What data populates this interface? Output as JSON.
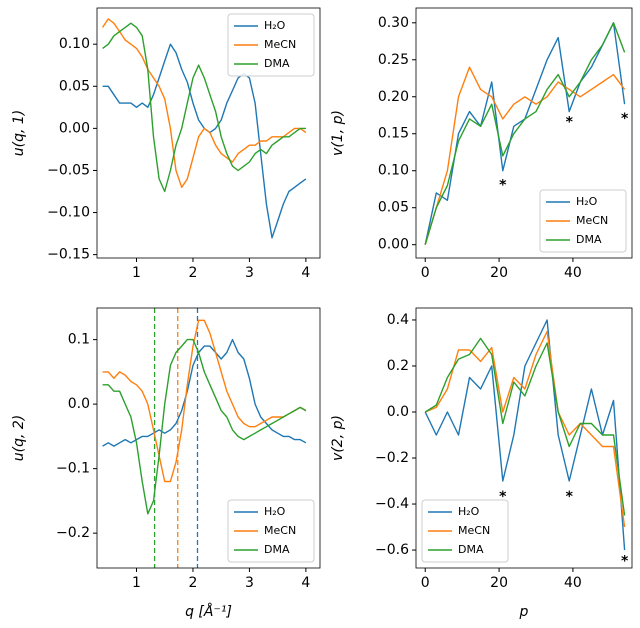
{
  "chart_data": [
    {
      "type": "line",
      "ylabel": "u(q, 1)",
      "x": [
        0.4,
        0.5,
        0.6,
        0.7,
        0.8,
        0.9,
        1.0,
        1.1,
        1.2,
        1.3,
        1.4,
        1.5,
        1.6,
        1.7,
        1.8,
        1.9,
        2.0,
        2.1,
        2.2,
        2.3,
        2.4,
        2.5,
        2.6,
        2.7,
        2.8,
        2.9,
        3.0,
        3.1,
        3.2,
        3.3,
        3.4,
        3.5,
        3.6,
        3.7,
        3.8,
        3.9,
        4.0
      ],
      "series": [
        {
          "name": "H₂O",
          "color": "#1f77b4",
          "values": [
            0.05,
            0.05,
            0.04,
            0.03,
            0.03,
            0.03,
            0.025,
            0.03,
            0.025,
            0.04,
            0.06,
            0.08,
            0.1,
            0.09,
            0.07,
            0.055,
            0.03,
            0.01,
            0.0,
            -0.005,
            0.0,
            0.01,
            0.03,
            0.045,
            0.06,
            0.065,
            0.06,
            0.03,
            -0.03,
            -0.09,
            -0.13,
            -0.11,
            -0.09,
            -0.075,
            -0.07,
            -0.065,
            -0.06
          ]
        },
        {
          "name": "MeCN",
          "color": "#ff7f0e",
          "values": [
            0.12,
            0.13,
            0.125,
            0.115,
            0.105,
            0.1,
            0.095,
            0.085,
            0.07,
            0.06,
            0.05,
            0.035,
            0.0,
            -0.05,
            -0.07,
            -0.06,
            -0.035,
            -0.01,
            0.0,
            -0.005,
            -0.02,
            -0.03,
            -0.035,
            -0.04,
            -0.03,
            -0.025,
            -0.02,
            -0.02,
            -0.015,
            -0.015,
            -0.01,
            -0.01,
            -0.01,
            -0.005,
            0.0,
            0.0,
            -0.005
          ]
        },
        {
          "name": "DMA",
          "color": "#2ca02c",
          "values": [
            0.095,
            0.1,
            0.11,
            0.115,
            0.12,
            0.125,
            0.12,
            0.11,
            0.07,
            -0.01,
            -0.06,
            -0.075,
            -0.05,
            -0.02,
            0.0,
            0.03,
            0.06,
            0.075,
            0.06,
            0.04,
            0.02,
            -0.01,
            -0.03,
            -0.045,
            -0.05,
            -0.045,
            -0.04,
            -0.03,
            -0.025,
            -0.03,
            -0.02,
            -0.015,
            -0.01,
            -0.01,
            -0.005,
            0.0,
            0.0
          ]
        }
      ],
      "xlim": [
        0.3,
        4.25
      ],
      "ylim": [
        -0.154,
        0.143
      ],
      "xticks": [
        1,
        2,
        3,
        4
      ],
      "yticks": [
        {
          "value": -0.15,
          "label": "−0.15"
        },
        {
          "value": -0.1,
          "label": "−0.10"
        },
        {
          "value": -0.05,
          "label": "−0.05"
        },
        {
          "value": 0,
          "label": "0.00"
        },
        {
          "value": 0.05,
          "label": "0.05"
        },
        {
          "value": 0.1,
          "label": "0.10"
        }
      ],
      "legend": "upper right"
    },
    {
      "type": "line",
      "ylabel": "v(1, p)",
      "x": [
        0,
        3,
        6,
        9,
        12,
        15,
        18,
        21,
        24,
        27,
        30,
        33,
        36,
        39,
        42,
        45,
        48,
        51,
        54
      ],
      "series": [
        {
          "name": "H₂O",
          "color": "#1f77b4",
          "values": [
            0,
            0.07,
            0.06,
            0.15,
            0.18,
            0.16,
            0.22,
            0.1,
            0.16,
            0.17,
            0.21,
            0.25,
            0.28,
            0.18,
            0.22,
            0.24,
            0.27,
            0.3,
            0.19
          ]
        },
        {
          "name": "MeCN",
          "color": "#ff7f0e",
          "values": [
            0,
            0.05,
            0.1,
            0.2,
            0.24,
            0.21,
            0.2,
            0.17,
            0.19,
            0.2,
            0.19,
            0.2,
            0.22,
            0.21,
            0.2,
            0.21,
            0.22,
            0.23,
            0.21
          ]
        },
        {
          "name": "DMA",
          "color": "#2ca02c",
          "values": [
            0,
            0.05,
            0.08,
            0.14,
            0.17,
            0.16,
            0.19,
            0.12,
            0.15,
            0.17,
            0.18,
            0.21,
            0.23,
            0.2,
            0.22,
            0.25,
            0.27,
            0.3,
            0.26
          ]
        }
      ],
      "xlim": [
        -2.5,
        56
      ],
      "ylim": [
        -0.018,
        0.32
      ],
      "xticks": [
        0,
        20,
        40
      ],
      "yticks": [
        {
          "value": 0,
          "label": "0.00"
        },
        {
          "value": 0.05,
          "label": "0.05"
        },
        {
          "value": 0.1,
          "label": "0.10"
        },
        {
          "value": 0.15,
          "label": "0.15"
        },
        {
          "value": 0.2,
          "label": "0.20"
        },
        {
          "value": 0.25,
          "label": "0.25"
        },
        {
          "value": 0.3,
          "label": "0.30"
        }
      ],
      "annotations": [
        {
          "x": 21,
          "y": 0.08,
          "text": "*"
        },
        {
          "x": 39,
          "y": 0.165,
          "text": "*"
        },
        {
          "x": 54,
          "y": 0.17,
          "text": "*"
        }
      ],
      "legend": "lower right"
    },
    {
      "type": "line",
      "ylabel": "u(q, 2)",
      "xlabel": "q [Å⁻¹]",
      "x": [
        0.4,
        0.5,
        0.6,
        0.7,
        0.8,
        0.9,
        1.0,
        1.1,
        1.2,
        1.3,
        1.4,
        1.5,
        1.6,
        1.7,
        1.8,
        1.9,
        2.0,
        2.1,
        2.2,
        2.3,
        2.4,
        2.5,
        2.6,
        2.7,
        2.8,
        2.9,
        3.0,
        3.1,
        3.2,
        3.3,
        3.4,
        3.5,
        3.6,
        3.7,
        3.8,
        3.9,
        4.0
      ],
      "series": [
        {
          "name": "H₂O",
          "color": "#1f77b4",
          "values": [
            -0.065,
            -0.06,
            -0.065,
            -0.06,
            -0.055,
            -0.06,
            -0.055,
            -0.05,
            -0.05,
            -0.045,
            -0.04,
            -0.045,
            -0.04,
            -0.03,
            -0.01,
            0.02,
            0.06,
            0.08,
            0.09,
            0.09,
            0.08,
            0.07,
            0.08,
            0.1,
            0.08,
            0.07,
            0.04,
            0.0,
            -0.02,
            -0.03,
            -0.04,
            -0.045,
            -0.05,
            -0.05,
            -0.055,
            -0.055,
            -0.06
          ]
        },
        {
          "name": "MeCN",
          "color": "#ff7f0e",
          "values": [
            0.05,
            0.05,
            0.04,
            0.05,
            0.045,
            0.035,
            0.03,
            0.02,
            0.0,
            -0.04,
            -0.08,
            -0.12,
            -0.12,
            -0.09,
            -0.04,
            0.03,
            0.09,
            0.13,
            0.13,
            0.11,
            0.08,
            0.05,
            0.02,
            0.0,
            -0.02,
            -0.03,
            -0.035,
            -0.035,
            -0.03,
            -0.025,
            -0.02,
            -0.02,
            -0.02,
            -0.015,
            -0.01,
            -0.005,
            -0.01
          ]
        },
        {
          "name": "DMA",
          "color": "#2ca02c",
          "values": [
            0.03,
            0.03,
            0.02,
            0.02,
            0.0,
            -0.02,
            -0.06,
            -0.12,
            -0.17,
            -0.15,
            -0.08,
            0.0,
            0.06,
            0.08,
            0.09,
            0.1,
            0.1,
            0.08,
            0.05,
            0.03,
            0.01,
            -0.01,
            -0.02,
            -0.04,
            -0.05,
            -0.055,
            -0.05,
            -0.045,
            -0.04,
            -0.035,
            -0.03,
            -0.025,
            -0.02,
            -0.015,
            -0.01,
            -0.005,
            -0.01
          ]
        }
      ],
      "xlim": [
        0.3,
        4.25
      ],
      "ylim": [
        -0.254,
        0.149
      ],
      "xticks": [
        1,
        2,
        3,
        4
      ],
      "yticks": [
        {
          "value": -0.2,
          "label": "−0.2"
        },
        {
          "value": -0.1,
          "label": "−0.1"
        },
        {
          "value": 0,
          "label": "0.0"
        },
        {
          "value": 0.1,
          "label": "0.1"
        }
      ],
      "vlines": [
        {
          "x": 1.32,
          "color": "#2ca02c"
        },
        {
          "x": 1.73,
          "color": "#ff7f0e"
        },
        {
          "x": 2.08,
          "color": "#1f77b4"
        }
      ],
      "legend": "lower right"
    },
    {
      "type": "line",
      "ylabel": "v(2, p)",
      "xlabel": "p",
      "x": [
        0,
        3,
        6,
        9,
        12,
        15,
        18,
        21,
        24,
        27,
        30,
        33,
        36,
        39,
        42,
        45,
        48,
        51,
        54
      ],
      "series": [
        {
          "name": "H₂O",
          "color": "#1f77b4",
          "values": [
            0,
            -0.1,
            0.0,
            -0.1,
            0.15,
            0.1,
            0.2,
            -0.3,
            -0.1,
            0.2,
            0.3,
            0.4,
            -0.1,
            -0.3,
            -0.1,
            0.1,
            -0.1,
            0.05,
            -0.6
          ]
        },
        {
          "name": "MeCN",
          "color": "#ff7f0e",
          "values": [
            0,
            0.02,
            0.1,
            0.27,
            0.27,
            0.22,
            0.28,
            0.0,
            0.15,
            0.1,
            0.25,
            0.35,
            0.0,
            -0.1,
            -0.05,
            -0.1,
            -0.15,
            -0.15,
            -0.5
          ]
        },
        {
          "name": "DMA",
          "color": "#2ca02c",
          "values": [
            0,
            0.03,
            0.15,
            0.23,
            0.25,
            0.32,
            0.25,
            -0.05,
            0.13,
            0.07,
            0.2,
            0.3,
            0.0,
            -0.15,
            -0.05,
            -0.05,
            -0.1,
            -0.1,
            -0.45
          ]
        }
      ],
      "xlim": [
        -2.5,
        56
      ],
      "ylim": [
        -0.678,
        0.452
      ],
      "xticks": [
        0,
        20,
        40
      ],
      "yticks": [
        {
          "value": -0.6,
          "label": "−0.6"
        },
        {
          "value": -0.4,
          "label": "−0.4"
        },
        {
          "value": -0.2,
          "label": "−0.2"
        },
        {
          "value": 0,
          "label": "0.0"
        },
        {
          "value": 0.2,
          "label": "0.2"
        },
        {
          "value": 0.4,
          "label": "0.4"
        }
      ],
      "annotations": [
        {
          "x": 21,
          "y": -0.37,
          "text": "*"
        },
        {
          "x": 39,
          "y": -0.37,
          "text": "*"
        },
        {
          "x": 54,
          "y": -0.65,
          "text": "*"
        }
      ],
      "legend": "lower left"
    }
  ]
}
